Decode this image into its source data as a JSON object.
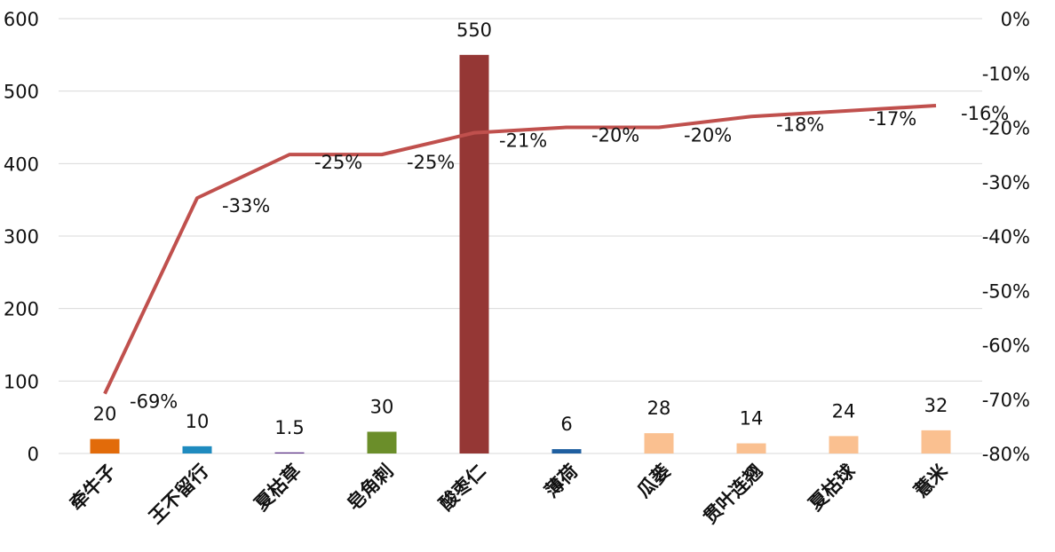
{
  "chart_data": {
    "type": "bar",
    "categories": [
      "牵牛子",
      "王不留行",
      "夏枯草",
      "皂角刺",
      "酸枣仁",
      "薄荷",
      "瓜蒌",
      "贯叶连翘",
      "夏枯球",
      "薏米"
    ],
    "series": [
      {
        "values": [
          20,
          10,
          1.5,
          30,
          550,
          6,
          28,
          14,
          24,
          32
        ],
        "value_labels": [
          "20",
          "10",
          "1.5",
          "30",
          "550",
          "6",
          "28",
          "14",
          "24",
          "32"
        ],
        "colors": [
          "#e26b0a",
          "#1f8bbf",
          "#5b2f86",
          "#6b8e2a",
          "#953735",
          "#1f5fa0",
          "#fac090",
          "#fac090",
          "#fac090",
          "#fac090"
        ],
        "axis": "left"
      },
      {
        "type": "line",
        "values": [
          -69,
          -33,
          -25,
          -25,
          -21,
          -20,
          -20,
          -18,
          -17,
          -16
        ],
        "value_labels": [
          "-69%",
          "-33%",
          "-25%",
          "-25%",
          "-21%",
          "-20%",
          "-20%",
          "-18%",
          "-17%",
          "-16%"
        ],
        "color": "#c0504d",
        "axis": "right"
      }
    ],
    "y_left": {
      "ylim": [
        0,
        600
      ],
      "ticks": [
        0,
        100,
        200,
        300,
        400,
        500,
        600
      ],
      "tick_labels": [
        "0",
        "100",
        "200",
        "300",
        "400",
        "500",
        "600"
      ]
    },
    "y_right": {
      "ylim": [
        -80,
        0
      ],
      "ticks": [
        -80,
        -70,
        -60,
        -50,
        -40,
        -30,
        -20,
        -10,
        0
      ],
      "tick_labels": [
        "-80%",
        "-70%",
        "-60%",
        "-50%",
        "-40%",
        "-30%",
        "-20%",
        "-10%",
        "0%"
      ]
    },
    "grid": true,
    "gridline_color": "#d9d9d9"
  }
}
